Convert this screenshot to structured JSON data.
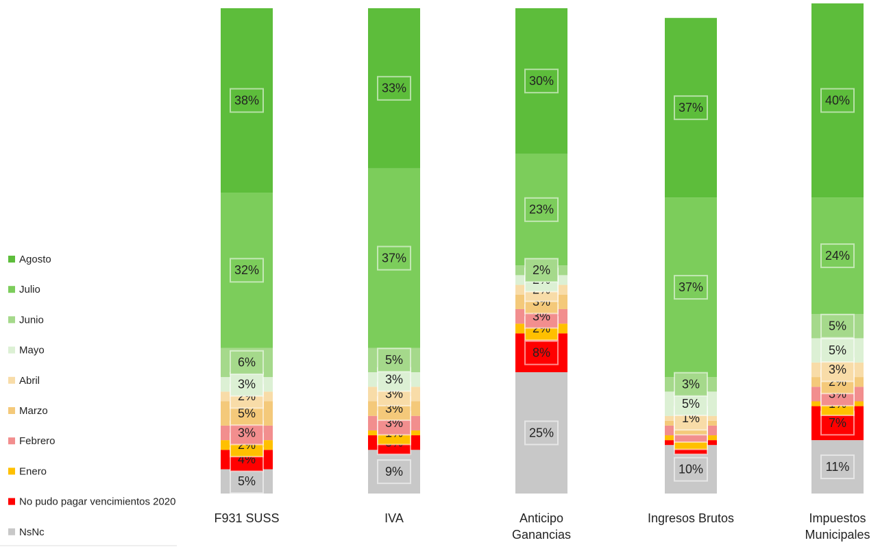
{
  "chart_data": {
    "type": "stacked_bar",
    "categories": [
      "F931 SUSS",
      "IVA",
      "Anticipo Ganancias",
      "Ingresos Brutos",
      "Impuestos Municipales"
    ],
    "ylim": [
      0,
      100
    ],
    "legend": "left",
    "series": [
      {
        "name": "NsNc",
        "color": "#c8c8c8",
        "values": [
          5,
          9,
          25,
          10,
          11
        ],
        "value_labels": [
          "5%",
          "9%",
          "25%",
          "10%",
          "11%"
        ]
      },
      {
        "name": "No pudo pagar vencimientos 2020",
        "color": "#ff0000",
        "values": [
          4,
          3,
          8,
          1,
          7
        ],
        "value_labels": [
          "4%",
          "3%",
          "8%",
          "1%",
          "7%"
        ]
      },
      {
        "name": "Enero",
        "color": "#ffc000",
        "values": [
          2,
          1,
          2,
          1,
          1
        ],
        "value_labels": [
          "2%",
          "1%",
          "2%",
          "1%",
          "1%"
        ]
      },
      {
        "name": "Febrero",
        "color": "#f28e8e",
        "values": [
          3,
          3,
          3,
          2,
          3
        ],
        "value_labels": [
          "3%",
          "3%",
          "3%",
          "2%",
          "3%"
        ]
      },
      {
        "name": "Marzo",
        "color": "#f4c97a",
        "values": [
          5,
          3,
          3,
          1,
          2
        ],
        "value_labels": [
          "5%",
          "3%",
          "3%",
          "1%",
          "2%"
        ]
      },
      {
        "name": "Abril",
        "color": "#f8dca8",
        "values": [
          2,
          3,
          2,
          1,
          3
        ],
        "value_labels": [
          "2%",
          "3%",
          "2%",
          "1%",
          "3%"
        ]
      },
      {
        "name": "Mayo",
        "color": "#dcf0d4",
        "values": [
          3,
          3,
          2,
          5,
          5
        ],
        "value_labels": [
          "3%",
          "3%",
          "2%",
          "5%",
          "5%"
        ]
      },
      {
        "name": "Junio",
        "color": "#a5d98b",
        "values": [
          6,
          5,
          2,
          3,
          5
        ],
        "value_labels": [
          "6%",
          "5%",
          "2%",
          "3%",
          "5%"
        ]
      },
      {
        "name": "Julio",
        "color": "#7ccd5b",
        "values": [
          32,
          37,
          23,
          37,
          24
        ],
        "value_labels": [
          "32%",
          "37%",
          "23%",
          "37%",
          "24%"
        ]
      },
      {
        "name": "Agosto",
        "color": "#5dbd3b",
        "values": [
          38,
          33,
          30,
          37,
          40
        ],
        "value_labels": [
          "38%",
          "33%",
          "30%",
          "37%",
          "40%"
        ]
      }
    ]
  }
}
